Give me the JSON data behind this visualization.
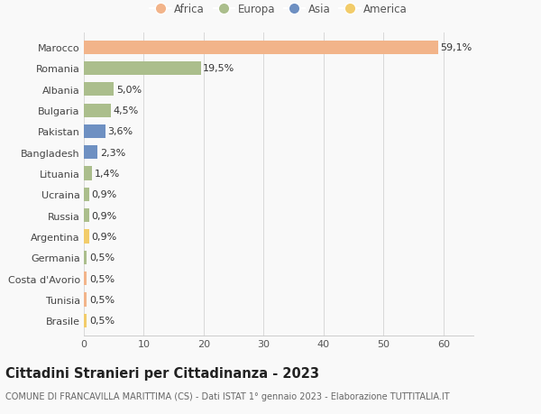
{
  "categories": [
    "Marocco",
    "Romania",
    "Albania",
    "Bulgaria",
    "Pakistan",
    "Bangladesh",
    "Lituania",
    "Ucraina",
    "Russia",
    "Argentina",
    "Germania",
    "Costa d'Avorio",
    "Tunisia",
    "Brasile"
  ],
  "values": [
    59.1,
    19.5,
    5.0,
    4.5,
    3.6,
    2.3,
    1.4,
    0.9,
    0.9,
    0.9,
    0.5,
    0.5,
    0.5,
    0.5
  ],
  "labels": [
    "59,1%",
    "19,5%",
    "5,0%",
    "4,5%",
    "3,6%",
    "2,3%",
    "1,4%",
    "0,9%",
    "0,9%",
    "0,9%",
    "0,5%",
    "0,5%",
    "0,5%",
    "0,5%"
  ],
  "colors": [
    "#F2B48A",
    "#ABBE8C",
    "#ABBE8C",
    "#ABBE8C",
    "#6E90C2",
    "#6E90C2",
    "#ABBE8C",
    "#ABBE8C",
    "#ABBE8C",
    "#F2CC6A",
    "#ABBE8C",
    "#F2B48A",
    "#F2B48A",
    "#F2CC6A"
  ],
  "legend": [
    {
      "label": "Africa",
      "color": "#F2B48A"
    },
    {
      "label": "Europa",
      "color": "#ABBE8C"
    },
    {
      "label": "Asia",
      "color": "#6E90C2"
    },
    {
      "label": "America",
      "color": "#F2CC6A"
    }
  ],
  "title": "Cittadini Stranieri per Cittadinanza - 2023",
  "subtitle": "COMUNE DI FRANCAVILLA MARITTIMA (CS) - Dati ISTAT 1° gennaio 2023 - Elaborazione TUTTITALIA.IT",
  "xlim": [
    0,
    65
  ],
  "xticks": [
    0,
    10,
    20,
    30,
    40,
    50,
    60
  ],
  "bg_color": "#f9f9f9",
  "bar_height": 0.65,
  "label_fontsize": 8,
  "tick_fontsize": 8,
  "title_fontsize": 10.5,
  "subtitle_fontsize": 7
}
